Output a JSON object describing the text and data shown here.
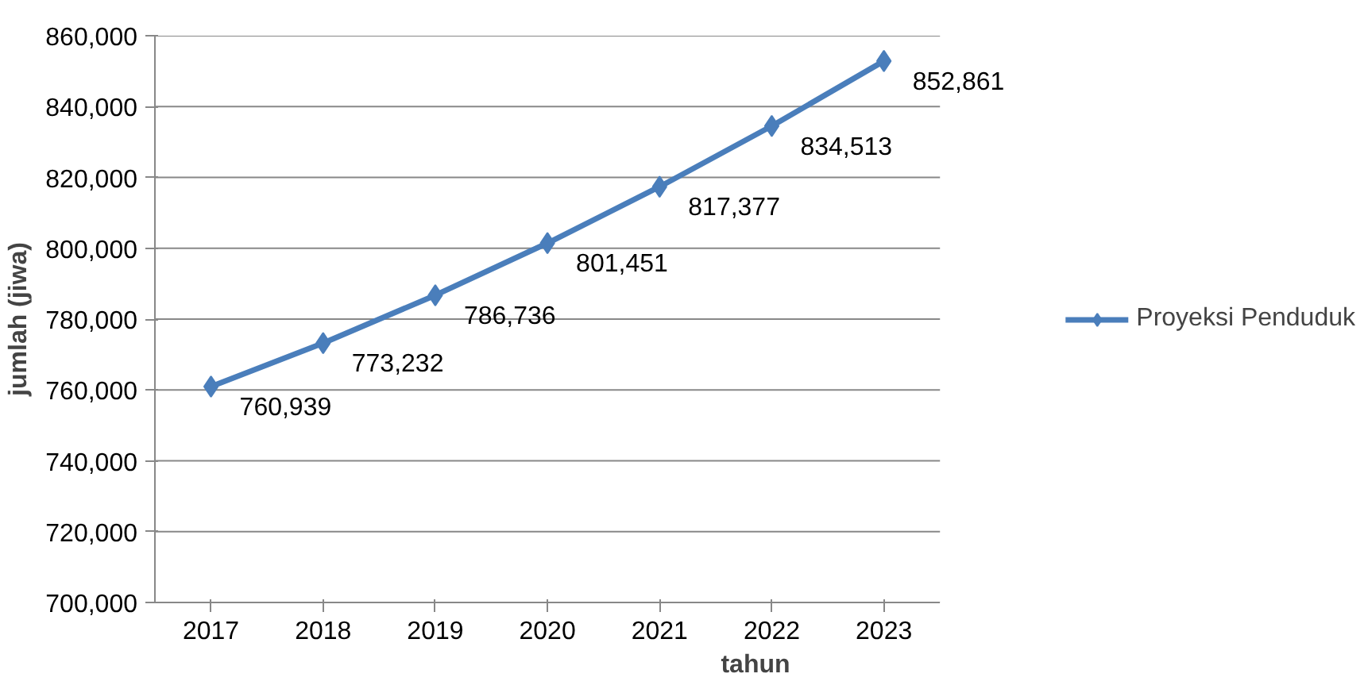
{
  "chart_data": {
    "type": "line",
    "xlabel": "tahun",
    "ylabel": "jumlah (jiwa)",
    "categories": [
      "2017",
      "2018",
      "2019",
      "2020",
      "2021",
      "2022",
      "2023"
    ],
    "series": [
      {
        "name": "Proyeksi Penduduk",
        "color": "#4a7ebb",
        "values": [
          760939,
          773232,
          786736,
          801451,
          817377,
          834513,
          852861
        ],
        "value_labels": [
          "760,939",
          "773,232",
          "786,736",
          "801,451",
          "817,377",
          "834,513",
          "852,861"
        ]
      }
    ],
    "ylim": [
      700000,
      860000
    ],
    "yticks": [
      {
        "value": 700000,
        "label": "700,000"
      },
      {
        "value": 720000,
        "label": "720,000"
      },
      {
        "value": 740000,
        "label": "740,000"
      },
      {
        "value": 760000,
        "label": "760,000"
      },
      {
        "value": 780000,
        "label": "780,000"
      },
      {
        "value": 800000,
        "label": "800,000"
      },
      {
        "value": 820000,
        "label": "820,000"
      },
      {
        "value": 840000,
        "label": "840,000"
      },
      {
        "value": 860000,
        "label": "860,000"
      }
    ],
    "grid": "y",
    "legend": "right",
    "marker": "diamond",
    "line_style": "solid",
    "data_labels": true
  }
}
